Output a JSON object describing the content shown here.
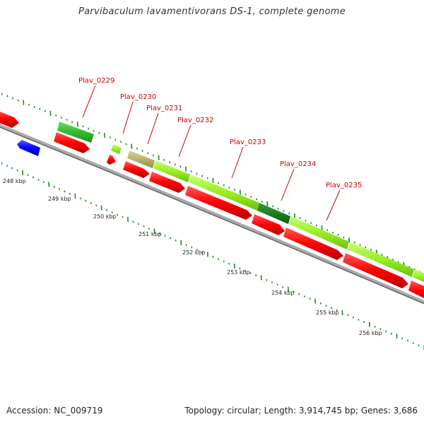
{
  "title": "Parvibaculum lavamentivorans DS-1, complete genome",
  "accession": "Accession: NC_009719",
  "topology": "Topology: circular; Length: 3,914,745 bp; Genes: 3,686",
  "colors": {
    "forward_gene": "#ff0000",
    "reverse_gene": "#0000ff",
    "ortholog_light": "#99ee22",
    "ortholog_mid": "#33bb33",
    "ortholog_dark": "#1f7f1f",
    "ortholog_tan": "#b7b46a",
    "backbone": "#888888",
    "tick": "#1a8a1a",
    "gene_label": "#cc0000"
  },
  "gene_labels": [
    "Plav_0229",
    "Plav_0230",
    "Plav_0231",
    "Plav_0232",
    "Plav_0233",
    "Plav_0234",
    "Plav_0235"
  ],
  "kbp_labels": [
    "248 kbp",
    "249 kbp",
    "250 kbp",
    "251 kbp",
    "252 kbp",
    "253 kbp",
    "254 kbp",
    "255 kbp",
    "256 kbp"
  ]
}
